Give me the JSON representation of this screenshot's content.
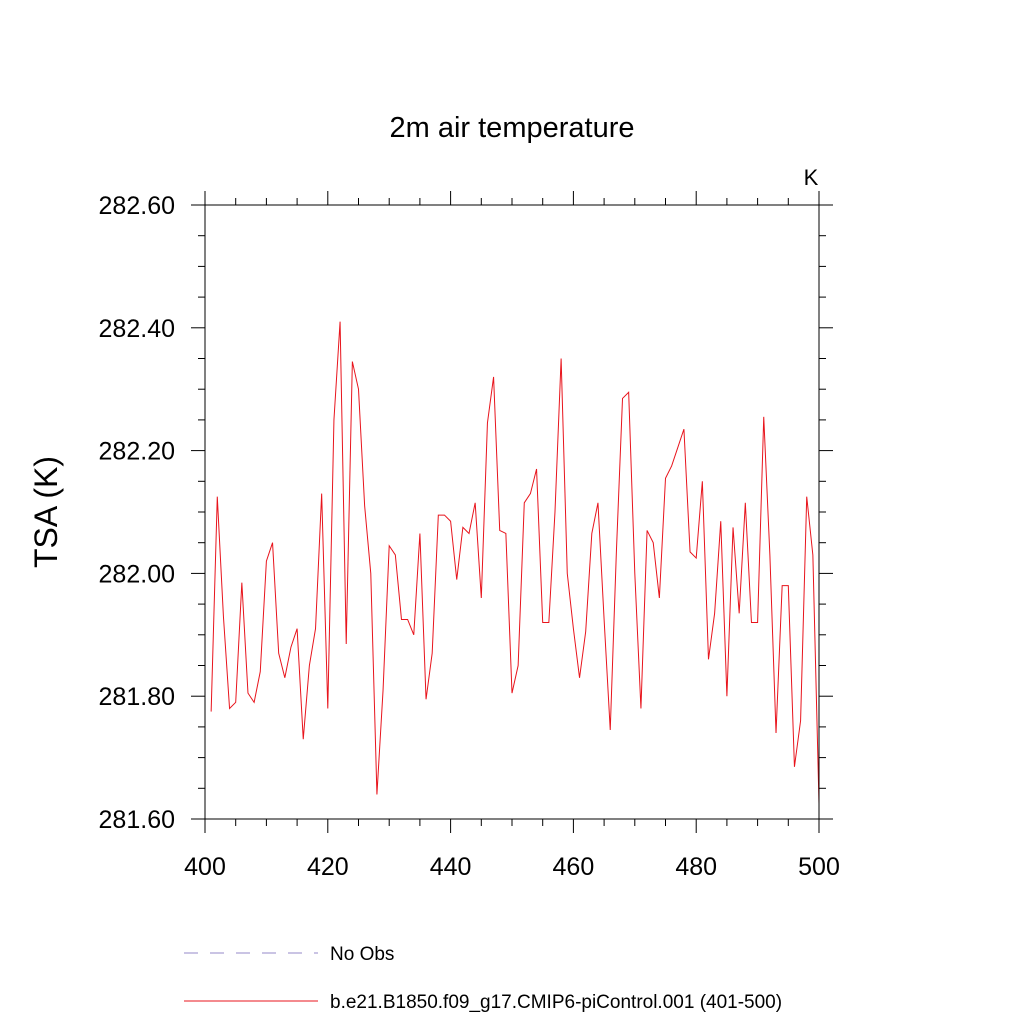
{
  "chart_data": {
    "type": "line",
    "title": "2m air temperature",
    "units_label": "K",
    "ylabel": "TSA  (K)",
    "xlabel": "",
    "xlim": [
      400,
      500
    ],
    "ylim": [
      281.6,
      282.6
    ],
    "x_ticks": [
      400,
      420,
      440,
      460,
      480,
      500
    ],
    "x_tick_labels": [
      "400",
      "420",
      "440",
      "460",
      "480",
      "500"
    ],
    "y_ticks": [
      281.6,
      281.8,
      282.0,
      282.2,
      282.4,
      282.6
    ],
    "y_tick_labels": [
      "281.60",
      "281.80",
      "282.00",
      "282.20",
      "282.40",
      "282.60"
    ],
    "grid": false,
    "legend_position": "bottom",
    "legend": [
      {
        "label": "No Obs",
        "color": "#9488c8",
        "dash": true
      },
      {
        "label": "b.e21.B1850.f09_g17.CMIP6-piControl.001 (401-500)",
        "color": "#e8141c",
        "dash": false
      }
    ],
    "series": [
      {
        "name": "b.e21.B1850.f09_g17.CMIP6-piControl.001 (401-500)",
        "color": "#e8141c",
        "x_start": 401,
        "x_step": 1,
        "values": [
          281.775,
          282.125,
          281.93,
          281.78,
          281.79,
          281.985,
          281.805,
          281.79,
          281.84,
          282.02,
          282.05,
          281.87,
          281.83,
          281.88,
          281.91,
          281.73,
          281.85,
          281.91,
          282.13,
          281.78,
          282.25,
          282.41,
          281.885,
          282.345,
          282.3,
          282.11,
          282.0,
          281.64,
          281.81,
          282.045,
          282.03,
          281.925,
          281.925,
          281.9,
          282.065,
          281.795,
          281.87,
          282.095,
          282.095,
          282.085,
          281.99,
          282.075,
          282.065,
          282.115,
          281.96,
          282.245,
          282.32,
          282.07,
          282.065,
          281.805,
          281.85,
          282.115,
          282.13,
          282.17,
          281.92,
          281.92,
          282.1,
          282.35,
          282.0,
          281.91,
          281.83,
          281.905,
          282.065,
          282.115,
          281.925,
          281.745,
          282.035,
          282.285,
          282.295,
          282.0,
          281.78,
          282.07,
          282.05,
          281.96,
          282.155,
          282.175,
          282.205,
          282.235,
          282.035,
          282.025,
          282.15,
          281.86,
          281.935,
          282.085,
          281.8,
          282.075,
          281.935,
          282.115,
          281.92,
          281.92,
          282.255,
          282.03,
          281.74,
          281.98,
          281.98,
          281.685,
          281.76,
          282.125,
          282.03,
          281.625
        ]
      }
    ]
  }
}
